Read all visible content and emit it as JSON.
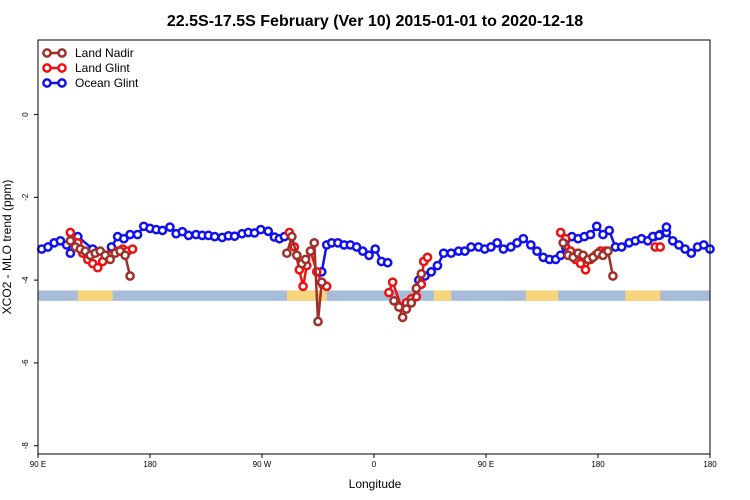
{
  "chart_data": {
    "type": "line",
    "title": "22.5S-17.5S February (Ver 10)   2015-01-01 to 2020-12-18",
    "xlabel": "Longitude",
    "ylabel": "XCO2 - MLO trend (ppm)",
    "xlim": [
      0,
      540
    ],
    "ylim": [
      -8.2,
      1.8
    ],
    "x_ticks": [
      {
        "value": 0,
        "label": "90 E"
      },
      {
        "value": 90,
        "label": "180"
      },
      {
        "value": 180,
        "label": "90 W"
      },
      {
        "value": 270,
        "label": "0"
      },
      {
        "value": 360,
        "label": "90 E"
      },
      {
        "value": 450,
        "label": "180"
      },
      {
        "value": 540,
        "label": "180"
      }
    ],
    "y_ticks": [
      {
        "value": 0,
        "label": "0"
      },
      {
        "value": -2,
        "label": "-2"
      },
      {
        "value": -4,
        "label": "-4"
      },
      {
        "value": -6,
        "label": "-6"
      },
      {
        "value": -8,
        "label": "-8"
      }
    ],
    "map_band": {
      "y_top": -4.25,
      "y_bottom": -4.5,
      "ocean_color": "#a7bcd9",
      "land_color": "#f7d57c",
      "land_segments": [
        [
          32,
          60
        ],
        [
          200,
          232
        ],
        [
          318,
          332
        ],
        [
          392,
          418
        ],
        [
          472,
          500
        ]
      ]
    },
    "legend": {
      "position": "top-left",
      "entries": [
        {
          "name": "Land Nadir",
          "color": "#a0302a"
        },
        {
          "name": "Land Glint",
          "color": "#ee1111"
        },
        {
          "name": "Ocean Glint",
          "color": "#1111ee"
        }
      ]
    },
    "series": [
      {
        "name": "Ocean Glint",
        "color": "#1111ee",
        "segments": [
          {
            "x": [
              3,
              8,
              13,
              18,
              23,
              26,
              32,
              44,
              54,
              59,
              64,
              69,
              74,
              80,
              85,
              90,
              95,
              100,
              106,
              111,
              116,
              121,
              127,
              132,
              137,
              142,
              148,
              153,
              158,
              164,
              169,
              174,
              179,
              185,
              190,
              194,
              198
            ],
            "y": [
              -3.25,
              -3.2,
              -3.1,
              -3.05,
              -3.15,
              -3.35,
              -2.95,
              -3.25,
              -3.4,
              -3.2,
              -2.95,
              -3.0,
              -2.9,
              -2.9,
              -2.7,
              -2.75,
              -2.78,
              -2.8,
              -2.72,
              -2.88,
              -2.83,
              -2.92,
              -2.9,
              -2.92,
              -2.92,
              -2.95,
              -2.97,
              -2.93,
              -2.94,
              -2.88,
              -2.85,
              -2.86,
              -2.78,
              -2.82,
              -2.96,
              -3.0,
              -2.95
            ]
          },
          {
            "x": [
              228,
              232,
              236,
              241,
              246,
              251,
              256,
              261,
              266,
              271,
              276,
              281
            ],
            "y": [
              -3.8,
              -3.15,
              -3.1,
              -3.1,
              -3.15,
              -3.15,
              -3.2,
              -3.3,
              -3.4,
              -3.25,
              -3.55,
              -3.58
            ]
          },
          {
            "x": [
              306,
              311,
              316,
              321,
              326,
              332,
              338,
              343,
              348,
              354,
              359,
              364,
              369,
              374,
              380,
              385,
              390,
              396,
              401,
              406,
              411,
              416,
              420,
              424,
              429,
              434,
              439,
              444,
              449,
              454,
              459,
              464,
              469,
              475,
              480,
              485,
              490,
              495,
              500,
              505,
              510,
              515,
              520,
              525,
              530,
              535,
              540
            ],
            "y": [
              -4.0,
              -3.9,
              -3.8,
              -3.65,
              -3.35,
              -3.35,
              -3.3,
              -3.3,
              -3.2,
              -3.2,
              -3.25,
              -3.2,
              -3.1,
              -3.25,
              -3.2,
              -3.1,
              -3.0,
              -3.15,
              -3.3,
              -3.45,
              -3.5,
              -3.5,
              -3.4,
              -3.2,
              -2.95,
              -3.0,
              -2.95,
              -2.9,
              -2.7,
              -2.9,
              -2.8,
              -3.2,
              -3.2,
              -3.1,
              -3.05,
              -3.0,
              -3.05,
              -2.95,
              -2.9,
              -2.85,
              -3.05,
              -3.15,
              -3.25,
              -3.35,
              -3.2,
              -3.15,
              -3.25
            ]
          },
          {
            "x": [
              494,
              499,
              505
            ],
            "y": [
              -2.95,
              -2.92,
              -2.72
            ]
          }
        ]
      },
      {
        "name": "Land Glint",
        "color": "#ee1111",
        "segments": [
          {
            "x": [
              26,
              32,
              36,
              40,
              44,
              48,
              52,
              58
            ],
            "y": [
              -2.85,
              -3.1,
              -3.35,
              -3.5,
              -3.6,
              -3.7,
              -3.55,
              -3.4
            ]
          },
          {
            "x": [
              58,
              64,
              68,
              72,
              76
            ],
            "y": [
              -3.4,
              -3.3,
              -3.25,
              -3.3,
              -3.25
            ]
          },
          {
            "x": [
              202,
              206,
              210,
              213,
              216,
              219,
              224,
              229
            ],
            "y": [
              -2.85,
              -3.2,
              -3.75,
              -4.15,
              -3.65,
              -3.3,
              -3.8,
              -4.1
            ]
          },
          {
            "x": [
              229,
              232
            ],
            "y": [
              -4.1,
              -4.15
            ]
          },
          {
            "x": [
              282,
              285,
              292,
              296,
              300,
              304,
              308,
              310
            ],
            "y": [
              -4.3,
              -4.05,
              -4.65,
              -4.55,
              -4.45,
              -4.4,
              -4.1,
              -3.55
            ]
          },
          {
            "x": [
              310,
              313
            ],
            "y": [
              -3.55,
              -3.45
            ]
          },
          {
            "x": [
              420,
              424,
              428,
              432,
              436,
              440,
              444,
              448,
              452,
              456
            ],
            "y": [
              -2.85,
              -3.0,
              -3.3,
              -3.5,
              -3.6,
              -3.75,
              -3.5,
              -3.4,
              -3.3,
              -3.3
            ]
          },
          {
            "x": [
              496,
              500
            ],
            "y": [
              -3.2,
              -3.2
            ]
          }
        ]
      },
      {
        "name": "Land Nadir",
        "color": "#a0302a",
        "segments": [
          {
            "x": [
              26,
              30,
              34,
              38,
              42,
              46,
              50,
              54,
              58,
              62,
              66,
              70,
              74
            ],
            "y": [
              -3.05,
              -3.2,
              -3.25,
              -3.3,
              -3.4,
              -3.35,
              -3.3,
              -3.4,
              -3.5,
              -3.35,
              -3.3,
              -3.4,
              -3.9
            ]
          },
          {
            "x": [
              200,
              204,
              208,
              212,
              215,
              219,
              222,
              225,
              228
            ],
            "y": [
              -3.35,
              -2.95,
              -3.4,
              -3.6,
              -3.5,
              -3.3,
              -3.1,
              -5.0,
              -4.05
            ]
          },
          {
            "x": [
              286,
              290,
              293,
              296,
              300,
              304,
              308
            ],
            "y": [
              -4.5,
              -4.65,
              -4.9,
              -4.7,
              -4.55,
              -4.2,
              -3.85
            ]
          },
          {
            "x": [
              422,
              426,
              430,
              434,
              438,
              442,
              446,
              450,
              454,
              458,
              462
            ],
            "y": [
              -3.1,
              -3.4,
              -3.45,
              -3.35,
              -3.4,
              -3.5,
              -3.45,
              -3.35,
              -3.4,
              -3.3,
              -3.9
            ]
          }
        ]
      }
    ]
  }
}
